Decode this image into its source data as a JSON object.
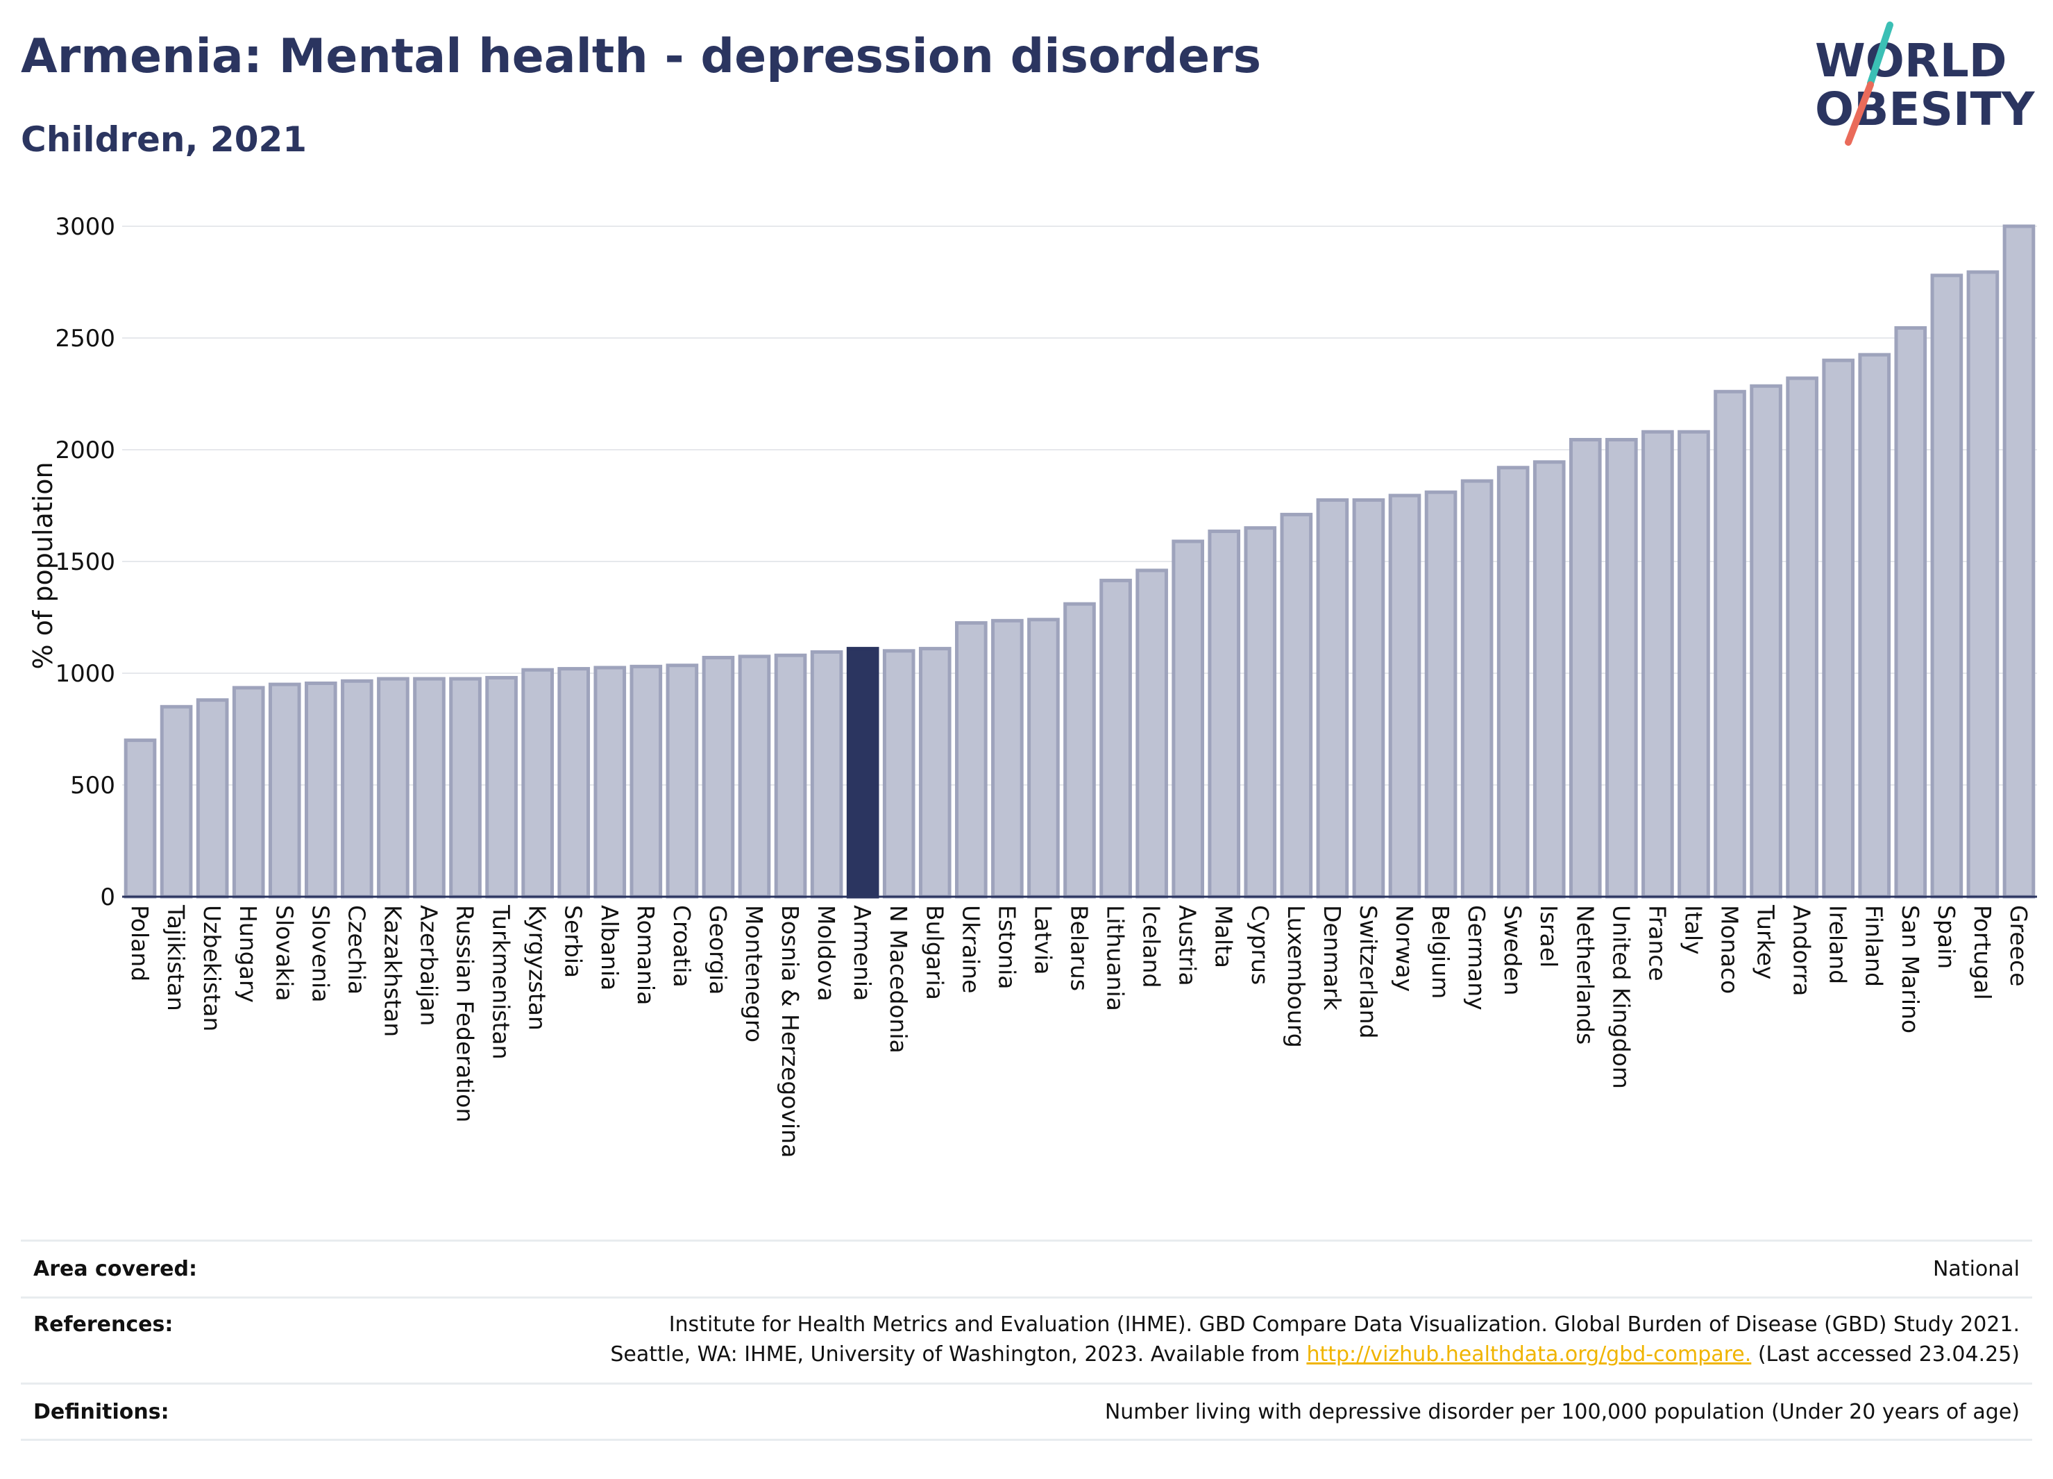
{
  "header": {
    "title": "Armenia: Mental health - depression disorders",
    "subtitle": "Children, 2021",
    "logo_line1": "WORLD",
    "logo_line2": "OBESITY"
  },
  "colors": {
    "title": "#2b3560",
    "bar": "#bec2d3",
    "bar_stroke": "#9ea3bc",
    "highlight": "#2b3560",
    "link": "#f0b400",
    "logo_teal": "#3bbfb5",
    "logo_coral": "#ea6b5a"
  },
  "chart_data": {
    "type": "bar",
    "highlight": "Armenia",
    "ylabel": "% of population",
    "xlabel": "",
    "ylim": [
      0,
      3000
    ],
    "yticks": [
      0,
      500,
      1000,
      1500,
      2000,
      2500,
      3000
    ],
    "grid": true,
    "categories": [
      "Poland",
      "Tajikistan",
      "Uzbekistan",
      "Hungary",
      "Slovakia",
      "Slovenia",
      "Czechia",
      "Kazakhstan",
      "Azerbaijan",
      "Russian Federation",
      "Turkmenistan",
      "Kyrgyzstan",
      "Serbia",
      "Albania",
      "Romania",
      "Croatia",
      "Georgia",
      "Montenegro",
      "Bosnia & Herzegovina",
      "Moldova",
      "Armenia",
      "N Macedonia",
      "Bulgaria",
      "Ukraine",
      "Estonia",
      "Latvia",
      "Belarus",
      "Lithuania",
      "Iceland",
      "Austria",
      "Malta",
      "Cyprus",
      "Luxembourg",
      "Denmark",
      "Switzerland",
      "Norway",
      "Belgium",
      "Germany",
      "Sweden",
      "Israel",
      "Netherlands",
      "United Kingdom",
      "France",
      "Italy",
      "Monaco",
      "Turkey",
      "Andorra",
      "Ireland",
      "Finland",
      "San Marino",
      "Spain",
      "Portugal",
      "Greece"
    ],
    "values": [
      700,
      850,
      880,
      935,
      950,
      955,
      965,
      975,
      975,
      975,
      980,
      1015,
      1020,
      1025,
      1030,
      1035,
      1070,
      1075,
      1080,
      1095,
      1110,
      1100,
      1110,
      1225,
      1235,
      1240,
      1310,
      1415,
      1460,
      1590,
      1635,
      1650,
      1710,
      1775,
      1775,
      1795,
      1810,
      1860,
      1920,
      1945,
      2045,
      2045,
      2080,
      2080,
      2260,
      2285,
      2320,
      2400,
      2425,
      2545,
      2780,
      2795,
      3000
    ]
  },
  "info": {
    "area_label": "Area covered:",
    "area_value": "National",
    "references_label": "References:",
    "references_line1": "Institute for Health Metrics and Evaluation (IHME). GBD Compare Data Visualization. Global Burden of Disease (GBD) Study 2021.",
    "references_line2_pre": "Seattle, WA: IHME, University of Washington, 2023. Available from",
    "references_link": "http://vizhub.healthdata.org/gbd-compare.",
    "references_line2_post": "(Last accessed 23.04.25)",
    "definitions_label": "Definitions:",
    "definitions_value": "Number living with depressive disorder per 100,000 population (Under 20 years of age)"
  }
}
